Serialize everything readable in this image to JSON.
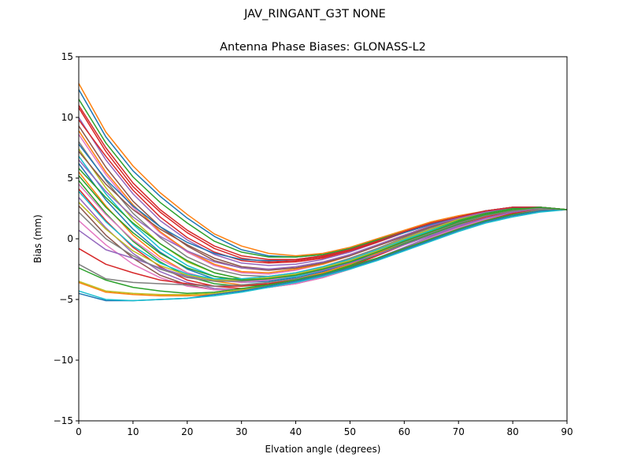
{
  "figure": {
    "suptitle": "JAV_RINGANT_G3T NONE"
  },
  "chart_data": {
    "type": "line",
    "title": "Antenna Phase Biases: GLONASS-L2",
    "xlabel": "Elvation angle (degrees)",
    "ylabel": "Bias (mm)",
    "xlim": [
      0,
      90
    ],
    "ylim": [
      -15,
      15
    ],
    "xticks": [
      0,
      10,
      20,
      30,
      40,
      50,
      60,
      70,
      80,
      90
    ],
    "yticks": [
      -15,
      -10,
      -5,
      0,
      5,
      10,
      15
    ],
    "yticklabels": [
      "−15",
      "−10",
      "−5",
      "0",
      "5",
      "10",
      "15"
    ],
    "grid": false,
    "legend": "none",
    "x": [
      0,
      5,
      10,
      15,
      20,
      25,
      30,
      35,
      40,
      45,
      50,
      55,
      60,
      65,
      70,
      75,
      80,
      85,
      90
    ],
    "series": [
      {
        "color": "#1f77b4",
        "values": [
          12.3,
          8.4,
          5.6,
          3.5,
          1.7,
          0.2,
          -0.9,
          -1.4,
          -1.5,
          -1.3,
          -0.8,
          -0.1,
          0.6,
          1.3,
          1.8,
          2.3,
          2.5,
          2.5,
          2.4
        ]
      },
      {
        "color": "#ff7f0e",
        "values": [
          12.8,
          8.8,
          6.0,
          3.8,
          2.0,
          0.4,
          -0.6,
          -1.2,
          -1.4,
          -1.2,
          -0.7,
          0.0,
          0.7,
          1.4,
          1.9,
          2.3,
          2.5,
          2.5,
          2.4
        ]
      },
      {
        "color": "#2ca02c",
        "values": [
          11.5,
          7.9,
          5.1,
          3.0,
          1.3,
          -0.2,
          -1.1,
          -1.5,
          -1.5,
          -1.3,
          -0.8,
          -0.1,
          0.6,
          1.3,
          1.8,
          2.3,
          2.5,
          2.5,
          2.4
        ]
      },
      {
        "color": "#d62728",
        "values": [
          10.8,
          7.2,
          4.3,
          2.2,
          0.5,
          -0.8,
          -1.6,
          -1.9,
          -1.8,
          -1.5,
          -0.9,
          -0.2,
          0.5,
          1.2,
          1.8,
          2.3,
          2.6,
          2.6,
          2.4
        ]
      },
      {
        "color": "#9467bd",
        "values": [
          10.0,
          6.5,
          3.7,
          1.5,
          -0.1,
          -1.3,
          -2.0,
          -2.2,
          -2.1,
          -1.7,
          -1.1,
          -0.3,
          0.5,
          1.2,
          1.8,
          2.3,
          2.6,
          2.6,
          2.4
        ]
      },
      {
        "color": "#8c564b",
        "values": [
          9.3,
          5.9,
          3.1,
          1.0,
          -0.6,
          -1.8,
          -2.4,
          -2.6,
          -2.4,
          -2.0,
          -1.3,
          -0.5,
          0.3,
          1.1,
          1.8,
          2.3,
          2.6,
          2.6,
          2.4
        ]
      },
      {
        "color": "#e377c2",
        "values": [
          8.6,
          5.3,
          2.6,
          0.5,
          -1.1,
          -2.2,
          -2.8,
          -2.9,
          -2.6,
          -2.1,
          -1.4,
          -0.6,
          0.2,
          1.0,
          1.7,
          2.2,
          2.6,
          2.6,
          2.4
        ]
      },
      {
        "color": "#7f7f7f",
        "values": [
          8.0,
          4.8,
          2.1,
          0.1,
          -1.5,
          -2.5,
          -3.0,
          -3.1,
          -2.8,
          -2.3,
          -1.6,
          -0.8,
          0.1,
          0.9,
          1.6,
          2.2,
          2.6,
          2.6,
          2.4
        ]
      },
      {
        "color": "#bcbd22",
        "values": [
          7.4,
          4.2,
          1.6,
          -0.4,
          -1.9,
          -2.8,
          -3.3,
          -3.3,
          -3.0,
          -2.4,
          -1.7,
          -0.9,
          0.0,
          0.8,
          1.6,
          2.2,
          2.5,
          2.6,
          2.4
        ]
      },
      {
        "color": "#17becf",
        "values": [
          6.8,
          3.7,
          1.2,
          -0.8,
          -2.2,
          -3.1,
          -3.5,
          -3.4,
          -3.1,
          -2.6,
          -1.9,
          -1.0,
          -0.1,
          0.7,
          1.5,
          2.1,
          2.5,
          2.6,
          2.4
        ]
      },
      {
        "color": "#1f77b4",
        "values": [
          6.2,
          3.2,
          0.8,
          -1.1,
          -2.5,
          -3.3,
          -3.6,
          -3.5,
          -3.2,
          -2.7,
          -2.0,
          -1.1,
          -0.2,
          0.6,
          1.4,
          2.0,
          2.5,
          2.6,
          2.4
        ]
      },
      {
        "color": "#ff7f0e",
        "values": [
          5.5,
          2.7,
          0.3,
          -1.5,
          -2.8,
          -3.5,
          -3.8,
          -3.7,
          -3.3,
          -2.8,
          -2.1,
          -1.2,
          -0.3,
          0.5,
          1.3,
          2.0,
          2.4,
          2.6,
          2.4
        ]
      },
      {
        "color": "#2ca02c",
        "values": [
          4.8,
          2.1,
          -0.2,
          -1.9,
          -3.1,
          -3.7,
          -3.9,
          -3.8,
          -3.4,
          -2.9,
          -2.2,
          -1.3,
          -0.4,
          0.4,
          1.2,
          1.9,
          2.4,
          2.6,
          2.4
        ]
      },
      {
        "color": "#d62728",
        "values": [
          4.1,
          1.5,
          -0.7,
          -2.3,
          -3.4,
          -3.9,
          -4.1,
          -3.9,
          -3.5,
          -3.0,
          -2.3,
          -1.4,
          -0.5,
          0.3,
          1.1,
          1.8,
          2.3,
          2.5,
          2.4
        ]
      },
      {
        "color": "#9467bd",
        "values": [
          3.4,
          0.9,
          -1.2,
          -2.7,
          -3.6,
          -4.1,
          -4.2,
          -4.0,
          -3.6,
          -3.1,
          -2.4,
          -1.6,
          -0.7,
          0.2,
          1.0,
          1.7,
          2.2,
          2.5,
          2.4
        ]
      },
      {
        "color": "#8c564b",
        "values": [
          2.7,
          0.3,
          -1.6,
          -3.0,
          -3.8,
          -4.2,
          -4.2,
          -4.0,
          -3.7,
          -3.2,
          -2.5,
          -1.7,
          -0.8,
          0.1,
          0.9,
          1.6,
          2.2,
          2.5,
          2.4
        ]
      },
      {
        "color": "#e377c2",
        "values": [
          1.5,
          -0.5,
          -2.1,
          -3.2,
          -3.9,
          -4.2,
          -4.2,
          -4.0,
          -3.7,
          -3.2,
          -2.5,
          -1.7,
          -0.8,
          0.1,
          0.9,
          1.6,
          2.1,
          2.4,
          2.4
        ]
      },
      {
        "color": "#9467bd",
        "values": [
          0.7,
          -0.9,
          -1.6,
          -2.4,
          -3.1,
          -3.4,
          -3.5,
          -3.3,
          -3.0,
          -2.6,
          -2.0,
          -1.3,
          -0.5,
          0.3,
          1.1,
          1.7,
          2.2,
          2.5,
          2.4
        ]
      },
      {
        "color": "#d62728",
        "values": [
          -0.8,
          -2.1,
          -2.8,
          -3.4,
          -3.7,
          -3.9,
          -3.9,
          -3.7,
          -3.4,
          -2.9,
          -2.3,
          -1.6,
          -0.8,
          0.0,
          0.8,
          1.5,
          2.1,
          2.4,
          2.4
        ]
      },
      {
        "color": "#7f7f7f",
        "values": [
          -2.1,
          -3.3,
          -3.6,
          -3.7,
          -3.8,
          -3.9,
          -3.8,
          -3.6,
          -3.3,
          -2.9,
          -2.3,
          -1.6,
          -0.8,
          0.0,
          0.8,
          1.5,
          2.0,
          2.4,
          2.4
        ]
      },
      {
        "color": "#2ca02c",
        "values": [
          -2.4,
          -3.4,
          -4.0,
          -4.3,
          -4.5,
          -4.4,
          -4.1,
          -3.8,
          -3.4,
          -2.9,
          -2.3,
          -1.6,
          -0.8,
          0.0,
          0.8,
          1.5,
          2.0,
          2.3,
          2.4
        ]
      },
      {
        "color": "#ff7f0e",
        "values": [
          -3.6,
          -4.4,
          -4.6,
          -4.7,
          -4.7,
          -4.6,
          -4.3,
          -3.9,
          -3.5,
          -3.0,
          -2.4,
          -1.7,
          -0.9,
          -0.1,
          0.7,
          1.4,
          1.9,
          2.3,
          2.4
        ]
      },
      {
        "color": "#bcbd22",
        "values": [
          -3.5,
          -4.3,
          -4.5,
          -4.6,
          -4.6,
          -4.5,
          -4.2,
          -3.9,
          -3.5,
          -3.0,
          -2.4,
          -1.7,
          -0.9,
          -0.1,
          0.7,
          1.4,
          1.9,
          2.3,
          2.4
        ]
      },
      {
        "color": "#1f77b4",
        "values": [
          -4.5,
          -5.1,
          -5.1,
          -5.0,
          -4.9,
          -4.6,
          -4.3,
          -3.9,
          -3.5,
          -3.0,
          -2.4,
          -1.7,
          -0.9,
          -0.1,
          0.7,
          1.4,
          1.9,
          2.3,
          2.4
        ]
      },
      {
        "color": "#17becf",
        "values": [
          -4.3,
          -5.0,
          -5.1,
          -5.0,
          -4.9,
          -4.7,
          -4.4,
          -4.0,
          -3.6,
          -3.1,
          -2.5,
          -1.8,
          -1.0,
          -0.2,
          0.6,
          1.3,
          1.8,
          2.2,
          2.4
        ]
      },
      {
        "color": "#d62728",
        "values": [
          9.8,
          6.8,
          4.0,
          1.8,
          0.1,
          -1.1,
          -1.8,
          -2.0,
          -1.9,
          -1.6,
          -1.0,
          -0.3,
          0.5,
          1.2,
          1.8,
          2.3,
          2.6,
          2.6,
          2.4
        ]
      },
      {
        "color": "#ff7f0e",
        "values": [
          8.9,
          5.5,
          2.8,
          0.6,
          -1.0,
          -2.1,
          -2.7,
          -2.8,
          -2.5,
          -2.1,
          -1.4,
          -0.6,
          0.2,
          1.0,
          1.7,
          2.2,
          2.6,
          2.6,
          2.4
        ]
      },
      {
        "color": "#8c564b",
        "values": [
          7.2,
          4.5,
          2.4,
          0.8,
          -0.5,
          -1.6,
          -2.3,
          -2.5,
          -2.4,
          -2.0,
          -1.4,
          -0.6,
          0.2,
          1.0,
          1.7,
          2.2,
          2.6,
          2.6,
          2.4
        ]
      },
      {
        "color": "#2ca02c",
        "values": [
          5.8,
          3.4,
          1.3,
          -0.4,
          -1.8,
          -2.8,
          -3.3,
          -3.3,
          -3.0,
          -2.5,
          -1.8,
          -1.0,
          -0.1,
          0.7,
          1.5,
          2.1,
          2.5,
          2.6,
          2.4
        ]
      },
      {
        "color": "#e377c2",
        "values": [
          4.5,
          2.0,
          -0.1,
          -1.7,
          -2.8,
          -3.4,
          -3.6,
          -3.4,
          -3.0,
          -2.5,
          -1.8,
          -1.0,
          -0.2,
          0.6,
          1.4,
          2.0,
          2.4,
          2.5,
          2.4
        ]
      },
      {
        "color": "#17becf",
        "values": [
          3.9,
          1.4,
          -0.6,
          -2.0,
          -2.9,
          -3.3,
          -3.3,
          -3.1,
          -2.8,
          -2.3,
          -1.7,
          -0.9,
          -0.1,
          0.7,
          1.4,
          2.0,
          2.4,
          2.5,
          2.4
        ]
      },
      {
        "color": "#bcbd22",
        "values": [
          3.0,
          0.8,
          -1.0,
          -2.2,
          -3.0,
          -3.4,
          -3.4,
          -3.2,
          -2.9,
          -2.4,
          -1.8,
          -1.0,
          -0.2,
          0.6,
          1.4,
          2.0,
          2.4,
          2.5,
          2.4
        ]
      },
      {
        "color": "#7f7f7f",
        "values": [
          2.2,
          0.0,
          -1.4,
          -2.5,
          -3.2,
          -3.5,
          -3.5,
          -3.3,
          -3.0,
          -2.5,
          -1.9,
          -1.1,
          -0.3,
          0.5,
          1.3,
          1.9,
          2.3,
          2.5,
          2.4
        ]
      },
      {
        "color": "#1f77b4",
        "values": [
          7.8,
          4.9,
          2.7,
          1.0,
          -0.3,
          -1.2,
          -1.7,
          -1.8,
          -1.7,
          -1.4,
          -0.9,
          -0.2,
          0.5,
          1.2,
          1.8,
          2.3,
          2.6,
          2.6,
          2.4
        ]
      },
      {
        "color": "#9467bd",
        "values": [
          6.5,
          3.9,
          1.8,
          0.2,
          -1.0,
          -1.9,
          -2.4,
          -2.5,
          -2.3,
          -1.9,
          -1.3,
          -0.5,
          0.3,
          1.1,
          1.7,
          2.2,
          2.6,
          2.6,
          2.4
        ]
      },
      {
        "color": "#d62728",
        "values": [
          11.0,
          7.5,
          4.6,
          2.4,
          0.7,
          -0.6,
          -1.4,
          -1.7,
          -1.7,
          -1.4,
          -0.9,
          -0.2,
          0.6,
          1.3,
          1.8,
          2.3,
          2.6,
          2.6,
          2.4
        ]
      },
      {
        "color": "#2ca02c",
        "values": [
          5.2,
          2.6,
          0.5,
          -1.2,
          -2.4,
          -3.1,
          -3.4,
          -3.3,
          -3.0,
          -2.5,
          -1.9,
          -1.1,
          -0.2,
          0.6,
          1.4,
          2.0,
          2.4,
          2.6,
          2.4
        ]
      }
    ]
  }
}
